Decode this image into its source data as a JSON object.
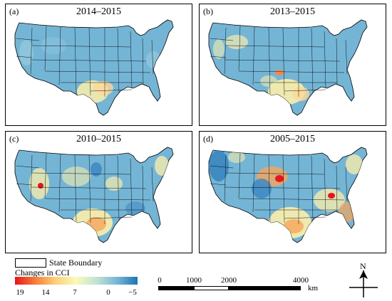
{
  "panels": [
    {
      "label": "(a)",
      "title": "2014–2015"
    },
    {
      "label": "(b)",
      "title": "2013–2015"
    },
    {
      "label": "(c)",
      "title": "2010–2015"
    },
    {
      "label": "(d)",
      "title": "2005–2015"
    }
  ],
  "legend": {
    "boundary_label": "State Boundary",
    "colorbar_title": "Changes in CCI",
    "ticks": [
      "19",
      "14",
      "7",
      "0",
      "−5"
    ],
    "colors": [
      "#e8151b",
      "#f57f3a",
      "#fcd17a",
      "#fafab8",
      "#bfe3d6",
      "#77b7d5",
      "#1d75b3"
    ]
  },
  "scale_bar": {
    "ticks": [
      "0",
      "1000",
      "2000",
      "4000"
    ],
    "unit": "km"
  },
  "north_arrow": {
    "label": "N"
  },
  "colors": {
    "base_map": "#74b5d6",
    "hot": "#e8151b",
    "warm": "#f6a55a",
    "mild": "#f5ecad",
    "cool": "#9fd0e0",
    "cold": "#3a86c0"
  }
}
